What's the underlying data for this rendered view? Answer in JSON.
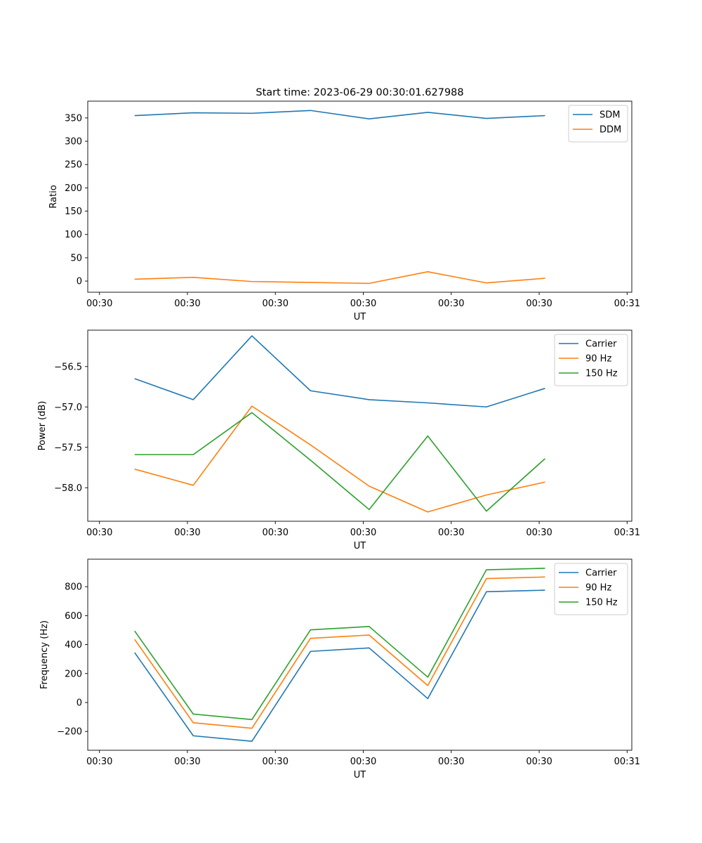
{
  "figure": {
    "title": "Start time: 2023-06-29 00:30:01.627988"
  },
  "chart_data": [
    {
      "type": "line",
      "title": "Start time: 2023-06-29 00:30:01.627988",
      "xlabel": "UT",
      "ylabel": "Ratio",
      "x": [
        1,
        2,
        3,
        4,
        5,
        6,
        7,
        8
      ],
      "xlim": [
        0.2,
        9.48
      ],
      "xticks": [
        0.4,
        1.9,
        3.4,
        4.9,
        6.4,
        7.9,
        9.4
      ],
      "xtick_labels": [
        "00:30",
        "00:30",
        "00:30",
        "00:30",
        "00:30",
        "00:30",
        "00:31"
      ],
      "ylim": [
        -24,
        386
      ],
      "yticks": [
        0,
        50,
        100,
        150,
        200,
        250,
        300,
        350
      ],
      "ytick_labels": [
        "0",
        "50",
        "100",
        "150",
        "200",
        "250",
        "300",
        "350"
      ],
      "grid": false,
      "legend": "top-right",
      "series": [
        {
          "name": "SDM",
          "color": "#1f77b4",
          "values": [
            355,
            361,
            360,
            366,
            348,
            362,
            349,
            355
          ]
        },
        {
          "name": "DDM",
          "color": "#ff7f0e",
          "values": [
            4,
            8,
            -1,
            -3,
            -5,
            20,
            -4,
            6
          ]
        }
      ]
    },
    {
      "type": "line",
      "xlabel": "UT",
      "ylabel": "Power (dB)",
      "x": [
        1,
        2,
        3,
        4,
        5,
        6,
        7,
        8
      ],
      "xlim": [
        0.2,
        9.48
      ],
      "xticks": [
        0.4,
        1.9,
        3.4,
        4.9,
        6.4,
        7.9,
        9.4
      ],
      "xtick_labels": [
        "00:30",
        "00:30",
        "00:30",
        "00:30",
        "00:30",
        "00:30",
        "00:31"
      ],
      "ylim": [
        -58.415,
        -56.05
      ],
      "yticks": [
        -58.0,
        -57.5,
        -57.0,
        -56.5
      ],
      "ytick_labels": [
        "−58.0",
        "−57.5",
        "−57.0",
        "−56.5"
      ],
      "grid": false,
      "legend": "top-right",
      "series": [
        {
          "name": "Carrier",
          "color": "#1f77b4",
          "values": [
            -56.65,
            -56.91,
            -56.12,
            -56.8,
            -56.91,
            -56.95,
            -57.0,
            -56.77
          ]
        },
        {
          "name": "90 Hz",
          "color": "#ff7f0e",
          "values": [
            -57.77,
            -57.97,
            -56.99,
            -57.47,
            -57.98,
            -58.3,
            -58.09,
            -57.93
          ]
        },
        {
          "name": "150 Hz",
          "color": "#2ca02c",
          "values": [
            -57.59,
            -57.59,
            -57.07,
            -57.66,
            -58.27,
            -57.36,
            -58.29,
            -57.64
          ]
        }
      ]
    },
    {
      "type": "line",
      "xlabel": "UT",
      "ylabel": "Frequency (Hz)",
      "x": [
        1,
        2,
        3,
        4,
        5,
        6,
        7,
        8
      ],
      "xlim": [
        0.2,
        9.48
      ],
      "xticks": [
        0.4,
        1.9,
        3.4,
        4.9,
        6.4,
        7.9,
        9.4
      ],
      "xtick_labels": [
        "00:30",
        "00:30",
        "00:30",
        "00:30",
        "00:30",
        "00:30",
        "00:31"
      ],
      "ylim": [
        -330,
        990
      ],
      "yticks": [
        -200,
        0,
        200,
        400,
        600,
        800
      ],
      "ytick_labels": [
        "−200",
        "0",
        "200",
        "400",
        "600",
        "800"
      ],
      "grid": false,
      "legend": "top-right",
      "series": [
        {
          "name": "Carrier",
          "color": "#1f77b4",
          "values": [
            345,
            -230,
            -268,
            353,
            377,
            27,
            765,
            776
          ]
        },
        {
          "name": "90 Hz",
          "color": "#ff7f0e",
          "values": [
            436,
            -140,
            -178,
            443,
            466,
            117,
            856,
            867
          ]
        },
        {
          "name": "150 Hz",
          "color": "#2ca02c",
          "values": [
            494,
            -80,
            -118,
            502,
            525,
            175,
            917,
            927
          ]
        }
      ]
    }
  ]
}
